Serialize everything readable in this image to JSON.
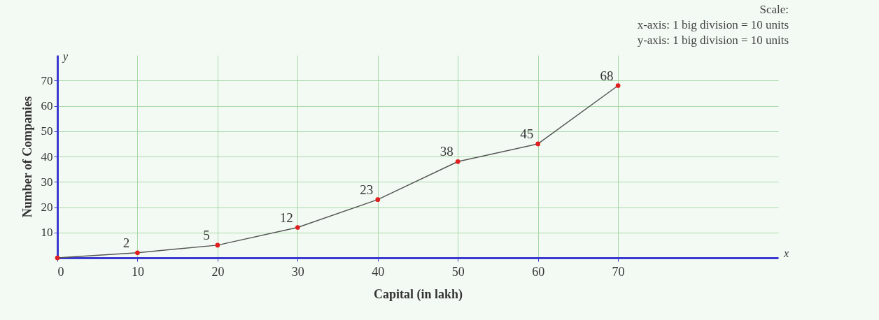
{
  "chart_data": {
    "type": "line",
    "xlabel": "Capital (in lakh)",
    "ylabel": "Number of Companies",
    "annotations": [
      "Scale:",
      "x-axis: 1 big division = 10 units",
      "y-axis: 1 big division = 10 units",
      "y",
      "x"
    ],
    "x": [
      0,
      10,
      20,
      30,
      40,
      50,
      60,
      70
    ],
    "series": [
      {
        "color": "#555555",
        "marker": "none",
        "values": [
          0,
          2,
          5,
          12,
          23,
          38,
          45,
          68
        ],
        "value_labels": [
          null,
          "2",
          "5",
          "12",
          "23",
          "38",
          "45",
          "68"
        ]
      },
      {
        "type": "scatter",
        "color": "#e02020",
        "values": [
          0,
          2,
          5,
          12,
          23,
          38,
          45,
          68
        ]
      }
    ],
    "marker": "circle",
    "xlim": [
      0,
      90
    ],
    "ylim": [
      0,
      80
    ],
    "xticks": [
      0,
      10,
      20,
      30,
      40,
      50,
      60,
      70
    ],
    "yticks": [
      10,
      20,
      30,
      40,
      50,
      60,
      70
    ],
    "grid": true
  }
}
